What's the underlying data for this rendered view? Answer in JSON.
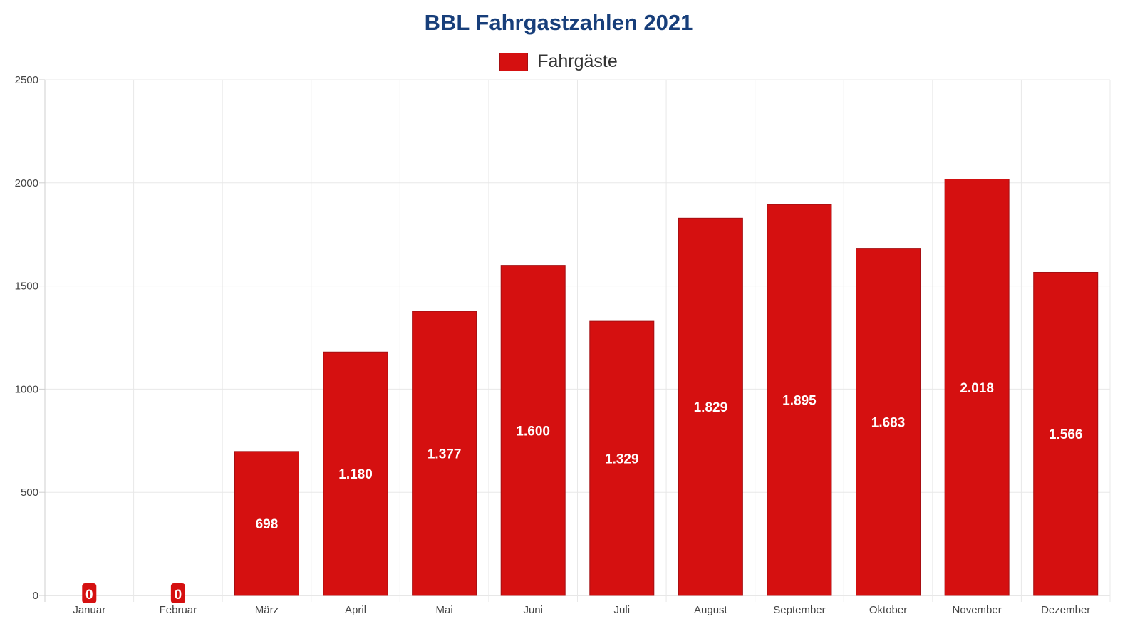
{
  "colors": {
    "title": "#173e7a",
    "bar": "#d51010",
    "bar_border": "#a50f12",
    "grid": "#e8e8e8",
    "axis": "#cfcfcf",
    "label_bg": "#d51010"
  },
  "chart_data": {
    "type": "bar",
    "title": "BBL Fahrgastzahlen 2021",
    "xlabel": "",
    "ylabel": "",
    "ylim": [
      0,
      2500
    ],
    "yticks": [
      0,
      500,
      1000,
      1500,
      2000,
      2500
    ],
    "grid": true,
    "legend_position": "top-center",
    "categories": [
      "Januar",
      "Februar",
      "März",
      "April",
      "Mai",
      "Juni",
      "Juli",
      "August",
      "September",
      "Oktober",
      "November",
      "Dezember"
    ],
    "series": [
      {
        "name": "Fahrgäste",
        "values": [
          0,
          0,
          698,
          1180,
          1377,
          1600,
          1329,
          1829,
          1895,
          1683,
          2018,
          1566
        ],
        "data_labels": [
          "0",
          "0",
          "698",
          "1.180",
          "1.377",
          "1.600",
          "1.329",
          "1.829",
          "1.895",
          "1.683",
          "2.018",
          "1.566"
        ]
      }
    ]
  }
}
